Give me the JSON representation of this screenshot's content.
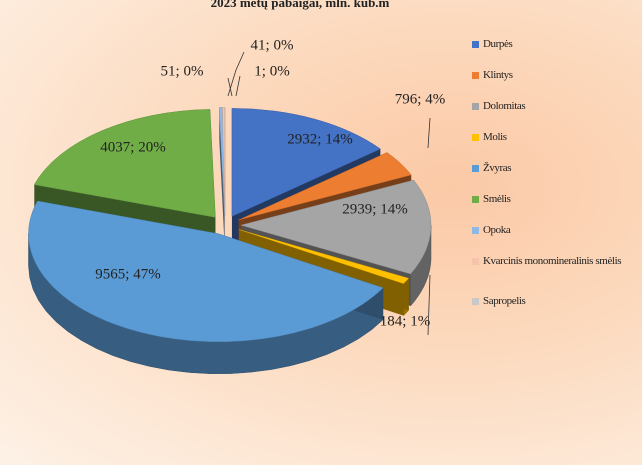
{
  "chart_data": {
    "type": "pie3d",
    "title": "2023 metų pabaigai, mln. kub.m",
    "categories": [
      "Durpės",
      "Klintys",
      "Dolomitas",
      "Molis",
      "Žvyras",
      "Smėlis",
      "Opoka",
      "Kvarcinis monomineralinis smėlis",
      "Sapropelis"
    ],
    "values": [
      2932,
      796,
      2939,
      184,
      9565,
      4037,
      51,
      41,
      1
    ],
    "value_labels": [
      "2932; 14%",
      "796; 4%",
      "2939; 14%",
      "184; 1%",
      "9565; 47%",
      "4037; 20%",
      "51; 0%",
      "41; 0%",
      "1; 0%"
    ],
    "colors": [
      "#4472c4",
      "#ed7d31",
      "#a5a5a5",
      "#ffc000",
      "#5b9bd5",
      "#70ad47",
      "#8fb8e4",
      "#f6c3ad",
      "#c8c8c8"
    ],
    "legend": "right"
  }
}
